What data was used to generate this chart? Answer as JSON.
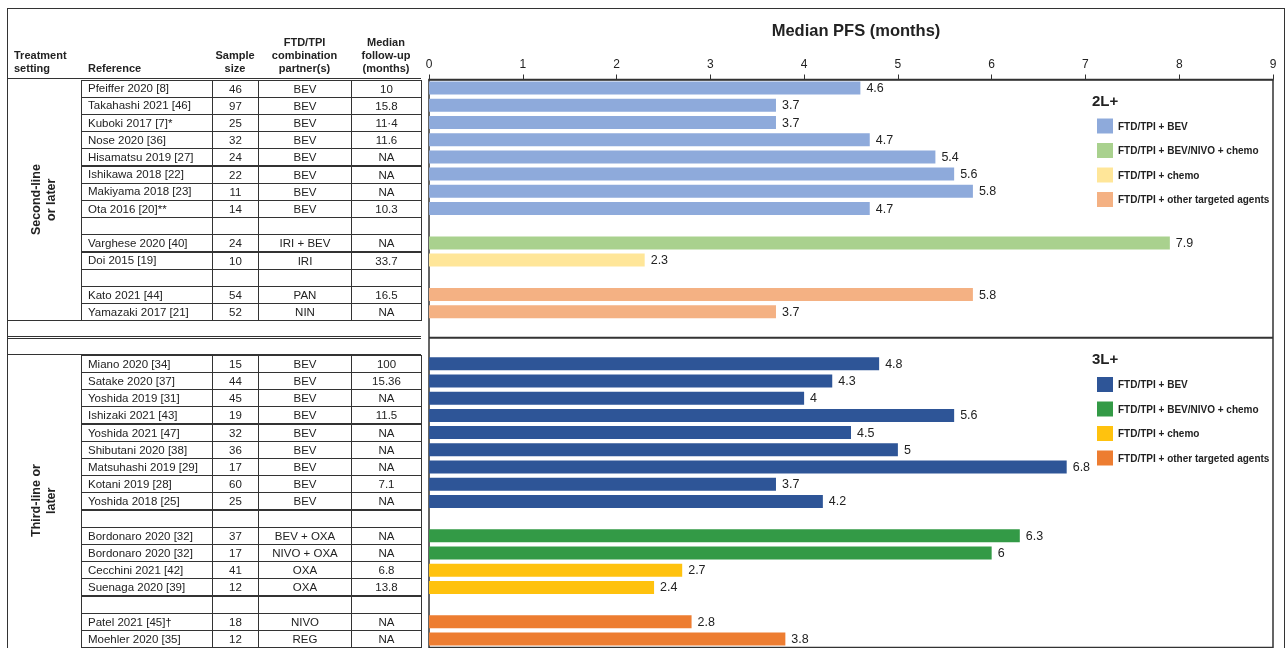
{
  "chart_data": [
    {
      "type": "other",
      "categories": [
        "Treatment setting",
        "Reference",
        "Sample size",
        "FTD/TPI combination partner(s)",
        "Median follow-up (months)"
      ],
      "cells": [
        [
          "Second-line or later",
          "46",
          "BEV",
          "10"
        ],
        [
          null,
          "97",
          "BEV",
          "15.8"
        ],
        [
          null,
          "25",
          "BEV",
          "11·4"
        ],
        [
          null,
          "32",
          "BEV",
          "11.6"
        ],
        [
          null,
          "24",
          "BEV",
          "NA"
        ],
        [
          null,
          "22",
          "BEV",
          "NA"
        ],
        [
          null,
          "11",
          "BEV",
          "NA"
        ],
        [
          null,
          "14",
          "BEV",
          "10.3"
        ],
        [
          null,
          null,
          null,
          null
        ],
        [
          null,
          "24",
          "IRI + BEV",
          "NA"
        ],
        [
          null,
          "10",
          "IRI",
          "33.7"
        ],
        [
          null,
          null,
          null,
          null
        ],
        [
          null,
          "54",
          "PAN",
          "16.5"
        ],
        [
          null,
          "52",
          "NIN",
          "NA"
        ],
        null,
        null,
        [
          "Third-line or later",
          "15",
          "BEV",
          "100"
        ],
        [
          null,
          "44",
          "BEV",
          "15.36"
        ],
        [
          null,
          "45",
          "BEV",
          "NA"
        ],
        [
          null,
          "19",
          "BEV",
          "11.5"
        ],
        [
          null,
          "32",
          "BEV",
          "NA"
        ],
        [
          null,
          "36",
          "BEV",
          "NA"
        ],
        [
          null,
          "17",
          "BEV",
          "NA"
        ],
        [
          null,
          "60",
          "BEV",
          "7.1"
        ],
        [
          null,
          "25",
          "BEV",
          "NA"
        ],
        [
          null,
          null,
          null,
          null
        ],
        [
          null,
          "37",
          "BEV + OXA",
          "NA"
        ],
        [
          null,
          "17",
          "NIVO + OXA",
          "NA"
        ],
        [
          null,
          "41",
          "OXA",
          "6.8"
        ],
        [
          null,
          "12",
          "OXA",
          "13.8"
        ],
        [
          null,
          null,
          null,
          null
        ],
        [
          null,
          "18",
          "NIVO",
          "NA"
        ],
        [
          null,
          "12",
          "REG",
          "NA"
        ]
      ]
    },
    {
      "type": "bar",
      "orientation": "horizontal",
      "title": "Median PFS (months)",
      "legend_title": "2L+",
      "legend": "top right",
      "data_labels": true,
      "x2lim": [
        0,
        9
      ],
      "x2ticks": [
        0,
        1,
        2,
        3,
        4,
        5,
        6,
        7,
        8,
        9
      ],
      "categories": [
        "Pfeiffer 2020 [8]",
        "Takahashi 2021 [46]",
        "Kuboki 2017 [7]*",
        "Nose 2020 [36]",
        "Hisamatsu 2019 [27]",
        "Ishikawa 2018 [22]",
        "Makiyama 2018 [23]",
        "Ota 2016 [20]**",
        null,
        "Varghese 2020 [40]",
        "Doi 2015 [19]",
        null,
        "Kato 2021 [44]",
        "Yamazaki 2017 [21]",
        null
      ],
      "series": [
        {
          "name": "FTD/TPI + BEV",
          "color": "#8eaadb",
          "values": [
            4.6,
            3.7,
            3.7,
            4.7,
            5.4,
            5.6,
            5.8,
            4.7,
            null,
            null,
            null,
            null,
            null,
            null,
            null
          ]
        },
        {
          "name": "FTD/TPI + BEV/NIVO + chemo",
          "color": "#a9d18e",
          "values": [
            null,
            null,
            null,
            null,
            null,
            null,
            null,
            null,
            null,
            7.9,
            null,
            null,
            null,
            null,
            null
          ]
        },
        {
          "name": "FTD/TPI + chemo",
          "color": "#ffe699",
          "values": [
            null,
            null,
            null,
            null,
            null,
            null,
            null,
            null,
            null,
            null,
            2.3,
            null,
            null,
            null,
            null
          ]
        },
        {
          "name": "FTD/TPI + other targeted agents",
          "color": "#f4b183",
          "values": [
            null,
            null,
            null,
            null,
            null,
            null,
            null,
            null,
            null,
            null,
            null,
            null,
            5.8,
            3.7,
            null
          ]
        }
      ]
    },
    {
      "type": "bar",
      "orientation": "horizontal",
      "legend_title": "3L+",
      "legend": "top right",
      "data_labels": true,
      "tick_labels": "y",
      "categories": [
        null,
        "Miano 2020 [34]",
        "Satake 2020 [37]",
        "Yoshida 2019 [31]",
        "Ishizaki 2021 [43]",
        "Yoshida 2021 [47]",
        "Shibutani 2020 [38]",
        "Matsuhashi 2019 [29]",
        "Kotani 2019 [28]",
        "Yoshida 2018 [25]",
        null,
        "Bordonaro 2020 [32]",
        "Bordonaro 2020 [32]",
        "Cecchini 2021 [42]",
        "Suenaga 2020 [39]",
        null,
        "Patel 2021 [45]†",
        "Moehler 2020 [35]"
      ],
      "series": [
        {
          "name": "FTD/TPI + BEV",
          "color": "#2e5597",
          "values": [
            null,
            4.8,
            4.3,
            4,
            5.6,
            4.5,
            5,
            6.8,
            3.7,
            4.2,
            null,
            null,
            null,
            null,
            null,
            null,
            null,
            null
          ]
        },
        {
          "name": "FTD/TPI + BEV/NIVO + chemo",
          "color": "#339a46",
          "values": [
            null,
            null,
            null,
            null,
            null,
            null,
            null,
            null,
            null,
            null,
            null,
            6.3,
            6,
            null,
            null,
            null,
            null,
            null
          ]
        },
        {
          "name": "FTD/TPI + chemo",
          "color": "#ffc20e",
          "values": [
            null,
            null,
            null,
            null,
            null,
            null,
            null,
            null,
            null,
            null,
            null,
            null,
            null,
            2.7,
            2.4,
            null,
            null,
            null
          ]
        },
        {
          "name": "FTD/TPI + other targeted agents",
          "color": "#ed7d31",
          "values": [
            null,
            null,
            null,
            null,
            null,
            null,
            null,
            null,
            null,
            null,
            null,
            null,
            null,
            null,
            null,
            null,
            2.8,
            3.8
          ]
        }
      ]
    }
  ]
}
